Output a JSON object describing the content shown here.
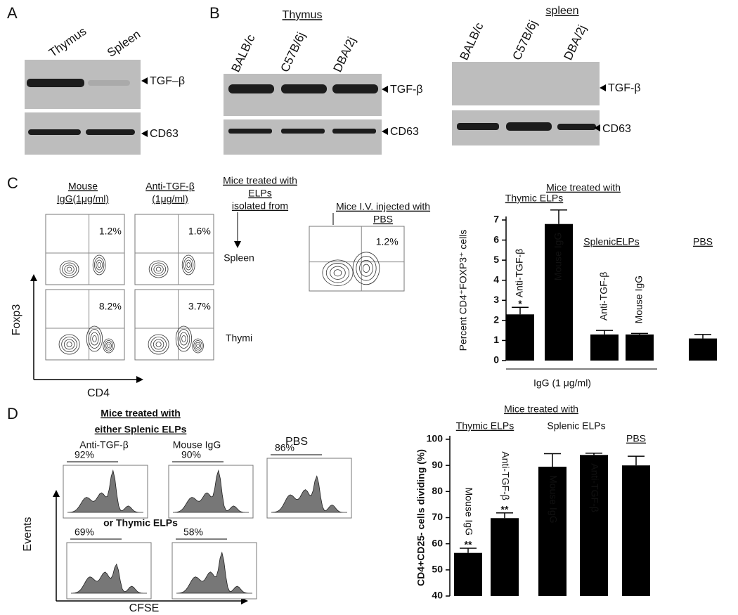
{
  "panels": {
    "A": {
      "label": "A",
      "lanes": [
        "Thymus",
        "Spleen"
      ],
      "markers": [
        "TGF–β",
        "CD63"
      ]
    },
    "B": {
      "label": "B",
      "blots": [
        {
          "tissue": "Thymus",
          "lanes": [
            "BALB/c",
            "C57B/6j",
            "DBA/2j"
          ],
          "markers": [
            "TGF-β",
            "CD63"
          ]
        },
        {
          "tissue": "spleen",
          "lanes": [
            "BALB/c",
            "C57B/6j",
            "DBA/2j"
          ],
          "markers": [
            "TGF-β",
            "CD63"
          ]
        }
      ]
    },
    "C": {
      "label": "C",
      "conditions": [
        [
          "Mouse",
          "IgG(1μg/ml)"
        ],
        [
          "Anti-TGF-β",
          "(1μg/ml)"
        ]
      ],
      "treatment": [
        "Mice treated with",
        "ELPs",
        "isolated from"
      ],
      "sources": [
        "Spleen",
        "Thymi"
      ],
      "percents": [
        [
          "1.2%",
          "1.6%"
        ],
        [
          "8.2%",
          "3.7%"
        ]
      ],
      "pbs_title": [
        "Mice I.V. injected with",
        "PBS"
      ],
      "pbs_percent": "1.2%",
      "y_axis": "Foxp3",
      "x_axis": "CD4"
    },
    "D": {
      "label": "D",
      "title": [
        "Mice treated with",
        "either Splenic ELPs"
      ],
      "conditions": [
        "Anti-TGF-β",
        "Mouse IgG",
        "PBS"
      ],
      "percents_top": [
        "92%",
        "90%",
        "86%"
      ],
      "subtitle": "or Thymic ELPs",
      "percents_bottom": [
        "69%",
        "58%"
      ],
      "y_axis": "Events",
      "x_axis": "CFSE"
    }
  },
  "chart_data": [
    {
      "type": "bar",
      "title": "Mice treated with",
      "groups": [
        "Thymic ELPs",
        "SplenicELPs",
        "PBS"
      ],
      "categories": [
        "Anti-TGF-β",
        "Mouse IgG",
        "Anti-TGF-β",
        "Mouse IgG",
        null
      ],
      "values": [
        2.3,
        6.8,
        1.3,
        1.3,
        1.1
      ],
      "errors": [
        0.35,
        0.7,
        0.2,
        0.05,
        0.2
      ],
      "value_annotations": [
        "*",
        null,
        null,
        null,
        null
      ],
      "y_label": "Percent CD4⁺FOXP3⁺ cells",
      "x_label": "IgG (1 μg/ml)",
      "ylim": [
        0,
        7
      ],
      "yticks": [
        0,
        1,
        2,
        3,
        4,
        5,
        6,
        7
      ],
      "color": "#000000"
    },
    {
      "type": "bar",
      "title": "Mice treated with",
      "groups": [
        "Thymic ELPs",
        "Splenic ELPs",
        "PBS"
      ],
      "categories": [
        "Mouse IgG",
        "Anti-TGF-β",
        "Mouse IgG",
        "Anti-TGF-β",
        null
      ],
      "values": [
        56.5,
        69.8,
        89.5,
        94,
        90
      ],
      "errors": [
        1.8,
        2,
        5,
        0.7,
        3.5
      ],
      "value_annotations": [
        "**",
        "**",
        null,
        null,
        null
      ],
      "y_label": "CD4+CD25- cells dividing (%)",
      "ylim": [
        40,
        100
      ],
      "yticks": [
        40,
        50,
        60,
        70,
        80,
        90,
        100
      ],
      "color": "#000000"
    }
  ]
}
